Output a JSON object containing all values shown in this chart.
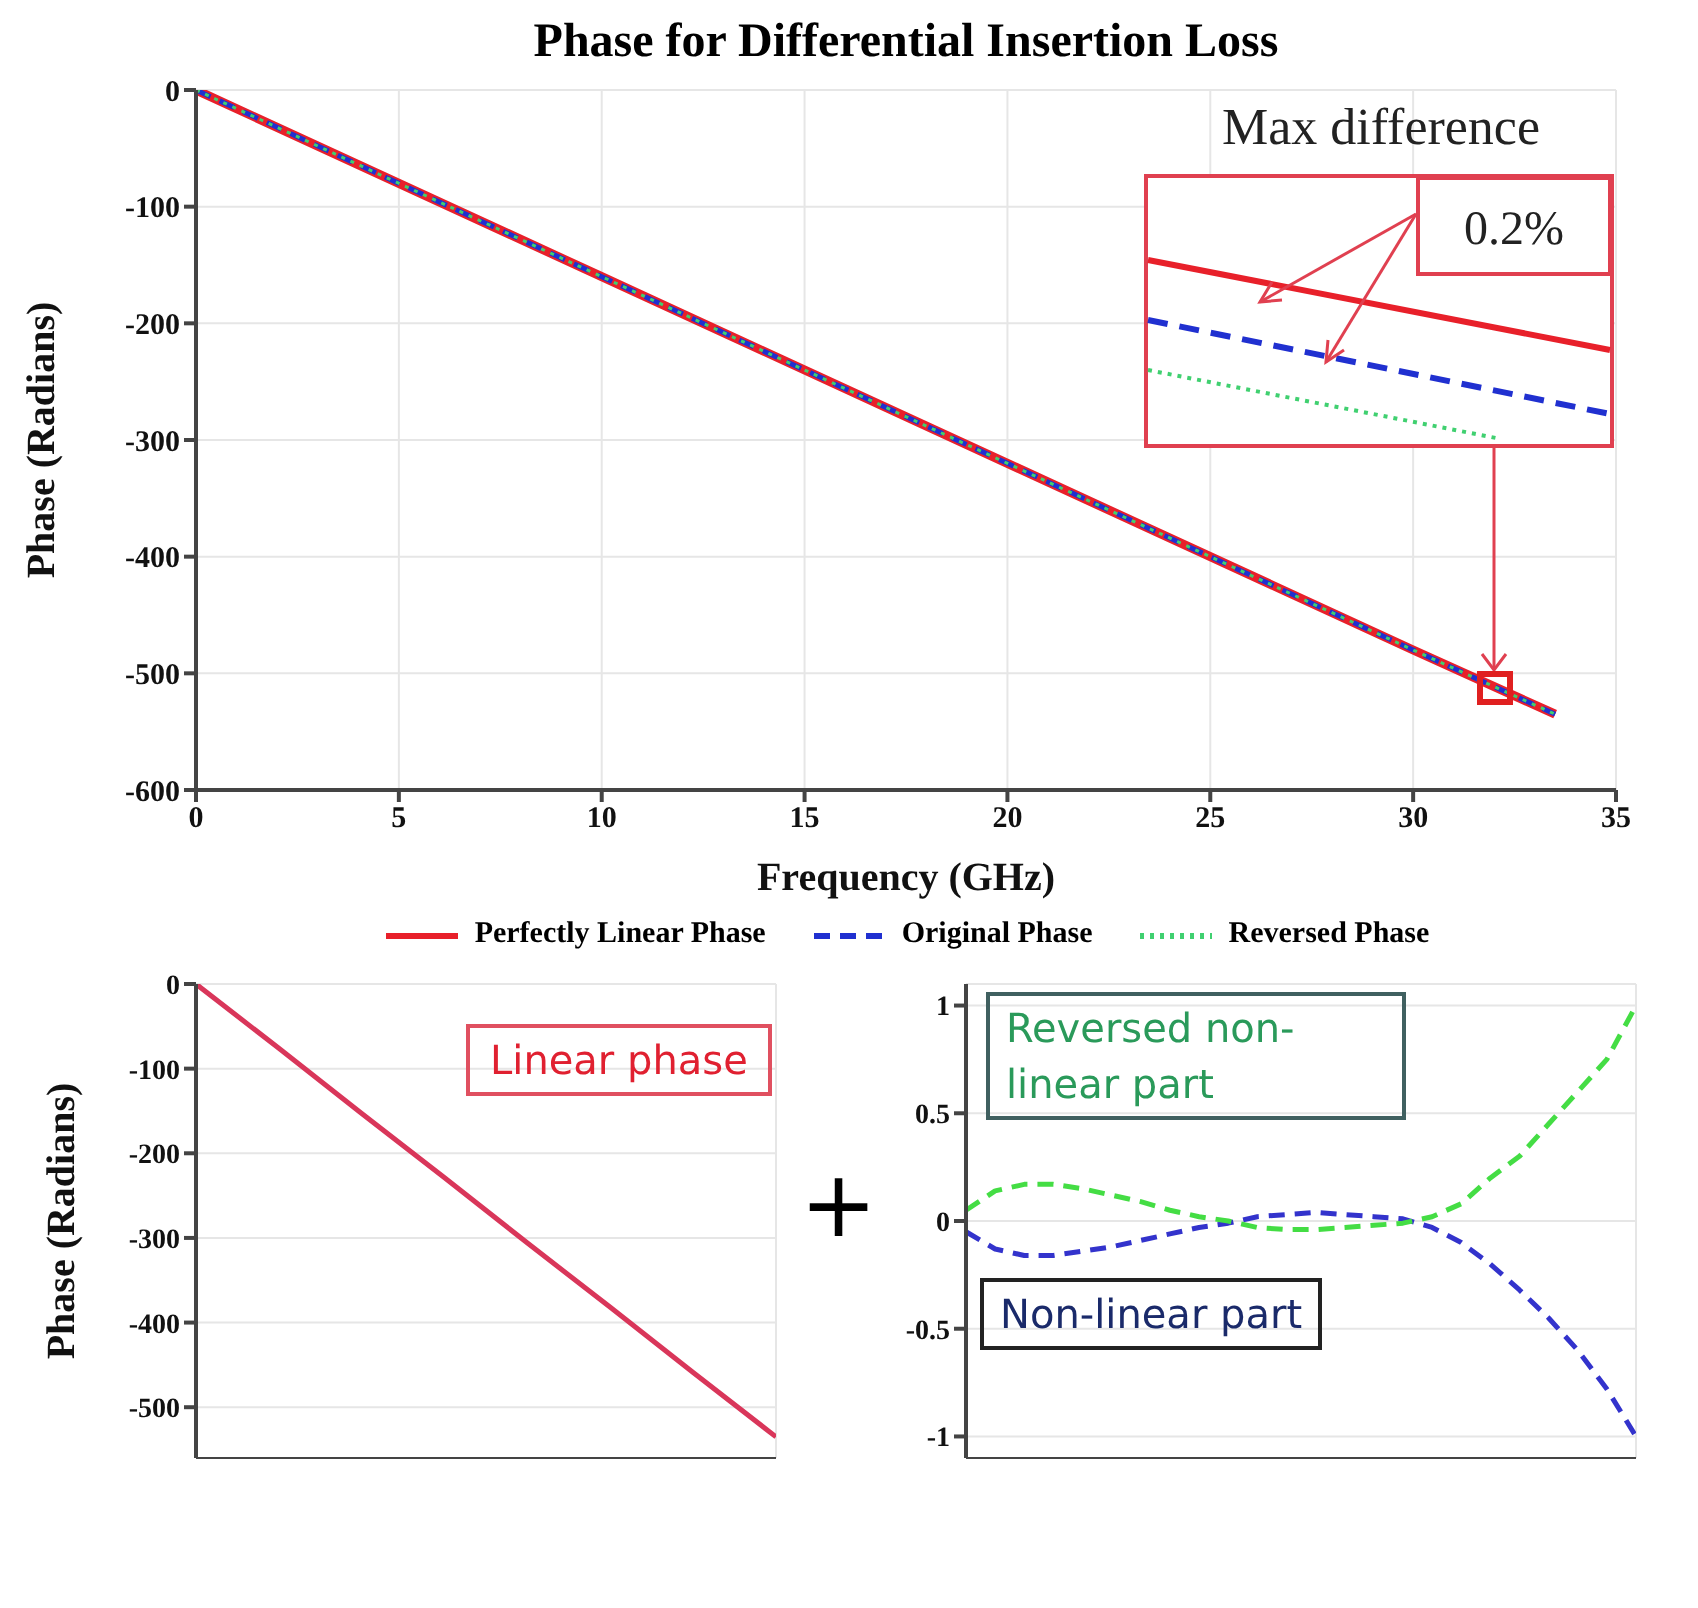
{
  "chart_data": [
    {
      "type": "line",
      "title": "Phase for Differential Insertion Loss",
      "xlabel": "Frequency (GHz)",
      "ylabel": "Phase (Radians)",
      "x": [
        0,
        10,
        20,
        30,
        33.5
      ],
      "series": [
        {
          "name": "Perfectly Linear Phase",
          "color": "#e8202a",
          "line_style": "solid",
          "values": [
            0,
            -160,
            -320,
            -480,
            -535
          ]
        },
        {
          "name": "Original Phase",
          "color": "#2030d0",
          "line_style": "dashed",
          "values": [
            0,
            -160,
            -320,
            -480,
            -535
          ]
        },
        {
          "name": "Reversed Phase",
          "color": "#40d070",
          "line_style": "dotted",
          "values": [
            0,
            -160,
            -320,
            -480,
            -535
          ]
        }
      ],
      "xlim": [
        0,
        35
      ],
      "xticks": [
        0,
        5,
        10,
        15,
        20,
        25,
        30,
        35
      ],
      "ylim": [
        -600,
        0
      ],
      "yticks": [
        -600,
        -500,
        -400,
        -300,
        -200,
        -100,
        0
      ],
      "grid": true,
      "legend": "bottom",
      "annotations": [
        "Max difference",
        "0.2%"
      ]
    },
    {
      "type": "line",
      "ylabel": "Phase (Radians)",
      "categories": [
        null,
        null,
        null,
        null,
        null,
        null,
        null,
        null
      ],
      "series": [
        {
          "color": "#d9365a",
          "values": [
            0,
            -76,
            -153,
            -229,
            -306,
            -382,
            -459,
            -535
          ]
        }
      ],
      "ylim": [
        -560,
        0
      ],
      "yticks": [
        -500,
        -400,
        -300,
        -200,
        -100,
        0
      ],
      "grid": true,
      "tick_labels": "y",
      "annotations": [
        "Linear phase",
        "+"
      ]
    },
    {
      "type": "line",
      "categories": [
        null,
        null,
        null,
        null,
        null,
        null,
        null,
        null,
        null,
        null,
        null,
        null,
        null,
        null,
        null,
        null,
        null,
        null,
        null,
        null,
        null,
        null,
        null,
        null
      ],
      "series": [
        {
          "color": "#3333cc",
          "line_style": "dashed",
          "values": [
            -0.05,
            -0.13,
            -0.16,
            -0.16,
            -0.14,
            -0.12,
            -0.09,
            -0.06,
            -0.03,
            -0.01,
            0.02,
            0.03,
            0.04,
            0.03,
            0.02,
            0.01,
            -0.03,
            -0.1,
            -0.2,
            -0.32,
            -0.45,
            -0.6,
            -0.78,
            -1.0
          ]
        },
        {
          "color": "#44dd44",
          "line_style": "dashed",
          "values": [
            0.05,
            0.14,
            0.17,
            0.17,
            0.15,
            0.12,
            0.09,
            0.05,
            0.02,
            0.0,
            -0.03,
            -0.04,
            -0.04,
            -0.03,
            -0.02,
            -0.01,
            0.02,
            0.08,
            0.2,
            0.3,
            0.45,
            0.6,
            0.75,
            1.0
          ]
        }
      ],
      "ylim": [
        -1.1,
        1.1
      ],
      "yticks": [
        -1,
        -0.5,
        0,
        0.5,
        1
      ],
      "grid": true,
      "tick_labels": "y",
      "annotations": [
        "Reversed non-linear part",
        "Non-linear part"
      ]
    }
  ]
}
